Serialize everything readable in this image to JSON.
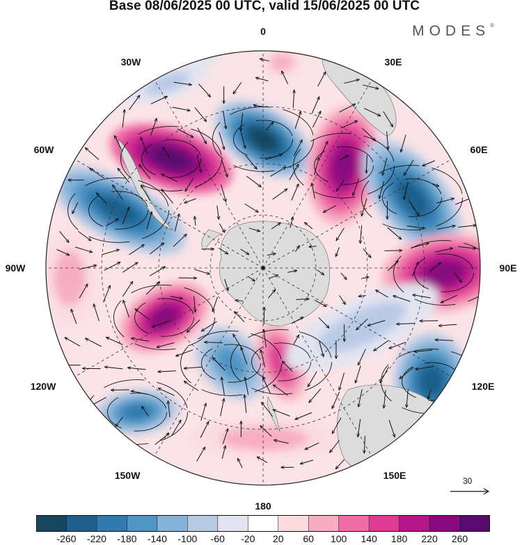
{
  "title": "Base 08/06/2025 00 UTC, valid 15/06/2025 00 UTC",
  "brand": {
    "name": "MODES",
    "mark": "®"
  },
  "longitude_labels": [
    "0",
    "30E",
    "60E",
    "90E",
    "120E",
    "150E",
    "180",
    "150W",
    "120W",
    "90W",
    "60W",
    "30W"
  ],
  "vector_scale": {
    "value": "30"
  },
  "colorbar": {
    "ticks": [
      "-260",
      "-220",
      "-180",
      "-140",
      "-100",
      "-60",
      "-20",
      "20",
      "60",
      "100",
      "140",
      "180",
      "220",
      "260"
    ],
    "colors": [
      "#17465f",
      "#1f5f8b",
      "#2f7aae",
      "#4f95c4",
      "#86b3d8",
      "#b9cae5",
      "#e2e4f1",
      "#ffffff",
      "#fbdde1",
      "#f7aec2",
      "#ee6ea6",
      "#dd3b94",
      "#b5178b",
      "#870b7f",
      "#5a0a6e"
    ]
  },
  "colors": {
    "land": "#dcdcdc",
    "grid": "#333333"
  }
}
